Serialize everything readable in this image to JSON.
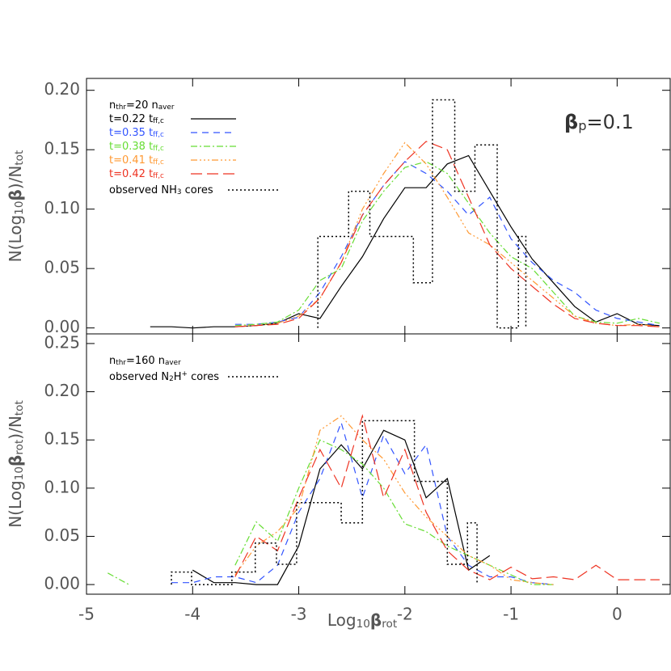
{
  "chart_data": [
    {
      "type": "line",
      "ylabel": [
        {
          "t": "N(Log"
        },
        {
          "t": "10",
          "sub": true
        },
        {
          "t": "β",
          "b": true
        },
        {
          "t": ")/N"
        },
        {
          "t": "tot",
          "sub": true
        }
      ],
      "annotation": [
        {
          "t": "β",
          "b": true
        },
        {
          "t": "p",
          "sub": true
        },
        {
          "t": "=0.1"
        }
      ],
      "legend_title": [
        {
          "t": "n"
        },
        {
          "t": "thr",
          "sub": true
        },
        {
          "t": "=20 n"
        },
        {
          "t": "aver",
          "sub": true
        }
      ],
      "xlim": [
        -5,
        0.5
      ],
      "xticks": [
        -5,
        -4,
        -3,
        -2,
        -1,
        0
      ],
      "show_xtick_labels": false,
      "ylim": [
        -0.005,
        0.21
      ],
      "yticks": [
        {
          "value": 0,
          "label": "0.00"
        },
        {
          "value": 0.05,
          "label": "0.05"
        },
        {
          "value": 0.1,
          "label": "0.10"
        },
        {
          "value": 0.15,
          "label": "0.15"
        },
        {
          "value": 0.2,
          "label": "0.20"
        }
      ],
      "x": [
        -4.4,
        -4.2,
        -4.0,
        -3.8,
        -3.6,
        -3.4,
        -3.2,
        -3.0,
        -2.8,
        -2.6,
        -2.4,
        -2.2,
        -2.0,
        -1.8,
        -1.6,
        -1.4,
        -1.2,
        -1.0,
        -0.8,
        -0.6,
        -0.4,
        -0.2,
        0,
        0.2,
        0.4
      ],
      "series": [
        {
          "name": [
            {
              "t": "t=0.22 t"
            },
            {
              "t": "ff,c",
              "sub": true
            }
          ],
          "color": "#000000",
          "dash": "none",
          "values": [
            0.001,
            0.001,
            0,
            0.001,
            0.001,
            0.002,
            0.004,
            0.012,
            0.008,
            0.035,
            0.06,
            0.092,
            0.118,
            0.118,
            0.138,
            0.145,
            0.115,
            0.085,
            0.058,
            0.038,
            0.018,
            0.005,
            0.012,
            0.003,
            0.002
          ]
        },
        {
          "name": [
            {
              "t": "t=0.35 t"
            },
            {
              "t": "ff,c",
              "sub": true
            }
          ],
          "color": "#3355ff",
          "dash": "8,6",
          "values": [
            null,
            null,
            null,
            null,
            0.003,
            0.003,
            0.005,
            0.009,
            0.03,
            0.06,
            0.095,
            0.12,
            0.14,
            0.13,
            0.115,
            0.095,
            0.11,
            0.075,
            0.055,
            0.04,
            0.03,
            0.015,
            0.008,
            0.005,
            0.002
          ]
        },
        {
          "name": [
            {
              "t": "t=0.38 t"
            },
            {
              "t": "ff,c",
              "sub": true
            }
          ],
          "color": "#66dd33",
          "dash": "8,3,2,3",
          "values": [
            null,
            null,
            null,
            null,
            0.002,
            0.003,
            0.005,
            0.015,
            0.04,
            0.05,
            0.09,
            0.115,
            0.135,
            0.14,
            0.13,
            0.105,
            0.08,
            0.06,
            0.05,
            0.03,
            0.01,
            0.005,
            0.004,
            0.008,
            0.004
          ]
        },
        {
          "name": [
            {
              "t": "t=0.41 t"
            },
            {
              "t": "ff,c",
              "sub": true
            }
          ],
          "color": "#ff9933",
          "dash": "8,3,2,3,2,3,2,3",
          "values": [
            null,
            null,
            null,
            null,
            0.001,
            0.002,
            0.004,
            0.01,
            0.025,
            0.055,
            0.1,
            0.13,
            0.156,
            0.138,
            0.11,
            0.08,
            0.07,
            0.055,
            0.04,
            0.025,
            0.01,
            0.004,
            0.002,
            0.003,
            0.001
          ]
        },
        {
          "name": [
            {
              "t": "t=0.42 t"
            },
            {
              "t": "ff,c",
              "sub": true
            }
          ],
          "color": "#ee3322",
          "dash": "14,6",
          "values": [
            null,
            null,
            null,
            null,
            0.001,
            0.002,
            0.003,
            0.008,
            0.025,
            0.055,
            0.095,
            0.12,
            0.14,
            0.157,
            0.15,
            0.11,
            0.07,
            0.05,
            0.035,
            0.02,
            0.008,
            0.004,
            0.002,
            0.002,
            0.001
          ]
        }
      ],
      "observed": {
        "name": [
          {
            "t": "observed NH"
          },
          {
            "t": "3",
            "sub": true
          },
          {
            "t": " cores"
          }
        ],
        "color": "#000000",
        "dash": "2,3",
        "bins": [
          -2.82,
          -2.53,
          -2.33,
          -1.92,
          -1.74,
          -1.53,
          -1.34,
          -1.13,
          -0.93,
          -0.86
        ],
        "values": [
          0.077,
          0.115,
          0.077,
          0.038,
          0.192,
          0.115,
          0.154,
          0,
          0.077
        ]
      }
    },
    {
      "type": "line",
      "ylabel": [
        {
          "t": "N(Log"
        },
        {
          "t": "10",
          "sub": true
        },
        {
          "t": "β",
          "b": true
        },
        {
          "t": "rot",
          "sub": true
        },
        {
          "t": ")/N"
        },
        {
          "t": "tot",
          "sub": true
        }
      ],
      "xlabel": [
        {
          "t": "Log"
        },
        {
          "t": "10",
          "sub": true
        },
        {
          "t": "β",
          "b": true
        },
        {
          "t": "rot",
          "sub": true
        }
      ],
      "legend_title": [
        {
          "t": "n"
        },
        {
          "t": "thr",
          "sub": true
        },
        {
          "t": "=160 n"
        },
        {
          "t": "aver",
          "sub": true
        }
      ],
      "xlim": [
        -5,
        0.5
      ],
      "xticks": [
        -5,
        -4,
        -3,
        -2,
        -1,
        0
      ],
      "show_xtick_labels": true,
      "ylim": [
        -0.01,
        0.26
      ],
      "yticks": [
        {
          "value": 0,
          "label": "0.00"
        },
        {
          "value": 0.05,
          "label": "0.05"
        },
        {
          "value": 0.1,
          "label": "0.10"
        },
        {
          "value": 0.15,
          "label": "0.15"
        },
        {
          "value": 0.2,
          "label": "0.20"
        },
        {
          "value": 0.25,
          "label": "0.25"
        }
      ],
      "x": [
        -4.8,
        -4.6,
        -4.4,
        -4.2,
        -4.0,
        -3.8,
        -3.6,
        -3.4,
        -3.2,
        -3.0,
        -2.8,
        -2.6,
        -2.4,
        -2.2,
        -2.0,
        -1.8,
        -1.6,
        -1.4,
        -1.2,
        -1.0,
        -0.8,
        -0.6,
        -0.4,
        -0.2,
        0,
        0.2,
        0.4
      ],
      "series": [
        {
          "color": "#000000",
          "dash": "none",
          "values": [
            null,
            null,
            null,
            null,
            0.015,
            0.002,
            0.002,
            0,
            0,
            0.04,
            0.12,
            0.145,
            0.12,
            0.16,
            0.15,
            0.09,
            0.11,
            0.015,
            0.03,
            null,
            null,
            null,
            null,
            null,
            null,
            null,
            null
          ]
        },
        {
          "color": "#3355ff",
          "dash": "8,6",
          "values": [
            null,
            null,
            null,
            0.002,
            0.002,
            0.008,
            0.008,
            0.002,
            0.02,
            0.075,
            0.11,
            0.168,
            0.09,
            0.155,
            0.115,
            0.145,
            0.05,
            0.02,
            0.008,
            0.008,
            0.002,
            0,
            null,
            null,
            null,
            null,
            null
          ]
        },
        {
          "color": "#66dd33",
          "dash": "8,3,2,3",
          "values": [
            0.012,
            0,
            null,
            null,
            null,
            null,
            0.02,
            0.065,
            0.045,
            0.1,
            0.15,
            0.14,
            0.125,
            0.1,
            0.063,
            0.055,
            0.04,
            0.03,
            0.02,
            0.01,
            0,
            0,
            null,
            null,
            null,
            null,
            null
          ]
        },
        {
          "color": "#ff9933",
          "dash": "8,3,2,3,2,3,2,3",
          "values": [
            null,
            null,
            null,
            null,
            null,
            null,
            0.01,
            0.04,
            0.055,
            0.08,
            0.16,
            0.175,
            0.15,
            0.13,
            0.095,
            0.07,
            0.05,
            0.03,
            0.02,
            0.005,
            0.002,
            0,
            null,
            null,
            null,
            null,
            null
          ]
        },
        {
          "color": "#ee3322",
          "dash": "14,6",
          "values": [
            null,
            null,
            null,
            null,
            null,
            null,
            0.008,
            0.05,
            0.035,
            0.09,
            0.14,
            0.1,
            0.175,
            0.09,
            0.14,
            0.075,
            0.035,
            0.015,
            0.005,
            0.018,
            0.006,
            0.008,
            0.005,
            0.02,
            0.005,
            0.005,
            0.005
          ]
        }
      ],
      "observed": {
        "name": [
          {
            "t": "observed N"
          },
          {
            "t": "2",
            "sub": true
          },
          {
            "t": "H"
          },
          {
            "t": "+",
            "sup": true
          },
          {
            "t": " cores"
          }
        ],
        "color": "#000000",
        "dash": "2,3",
        "bins": [
          -4.2,
          -4.01,
          -3.63,
          -3.41,
          -3.21,
          -3.02,
          -2.6,
          -2.4,
          -1.91,
          -1.6,
          -1.41,
          -1.32
        ],
        "values": [
          0.013,
          0,
          0.013,
          0.043,
          0.021,
          0.085,
          0.064,
          0.17,
          0.107,
          0.021,
          0.064
        ]
      }
    }
  ]
}
